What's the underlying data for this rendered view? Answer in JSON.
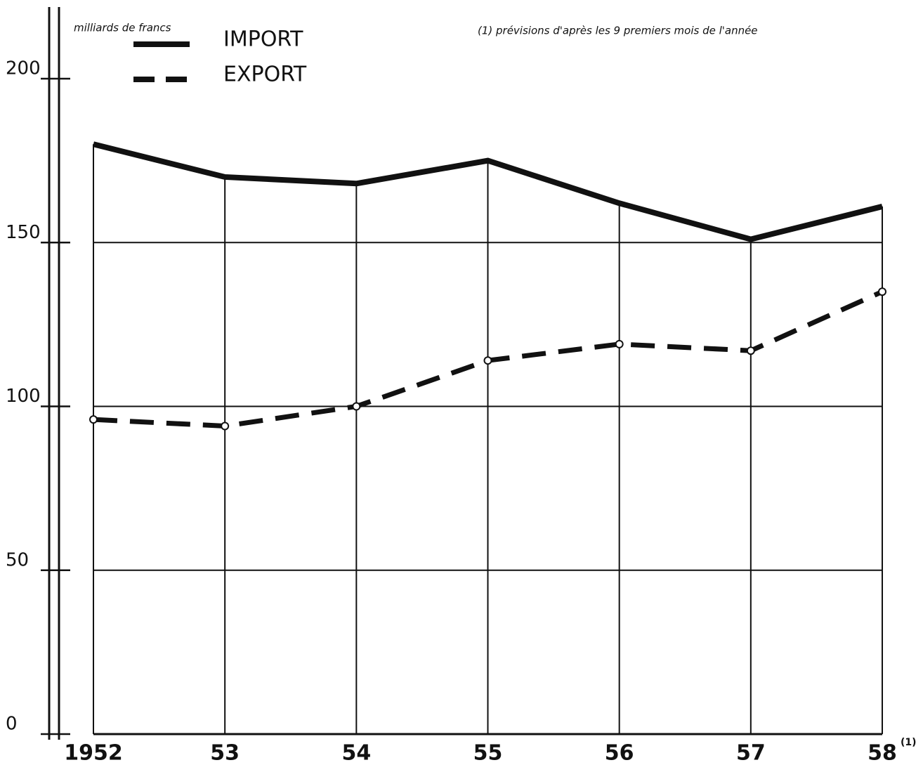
{
  "chart_data": {
    "type": "line",
    "unit_label": "milliards de francs",
    "footnote": "(1) prévisions d'après les 9 premiers mois de l'année",
    "footnote_marker": "(1)",
    "categories": [
      "1952",
      "53",
      "54",
      "55",
      "56",
      "57",
      "58"
    ],
    "series": [
      {
        "name": "IMPORT",
        "color": "#111111",
        "style": "solid",
        "values": [
          180,
          170,
          168,
          175,
          162,
          151,
          161
        ]
      },
      {
        "name": "EXPORT",
        "color": "#111111",
        "style": "dashed",
        "markers": true,
        "values": [
          96,
          94,
          100,
          114,
          119,
          117,
          135
        ]
      }
    ],
    "ylim": [
      0,
      200
    ],
    "yticks": [
      0,
      50,
      100,
      150,
      200
    ],
    "grid": true
  }
}
